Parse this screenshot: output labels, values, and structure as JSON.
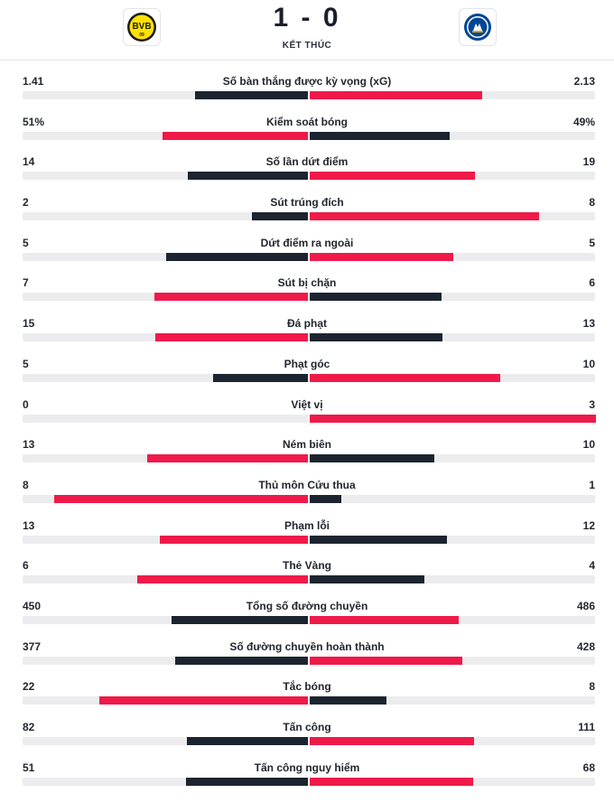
{
  "match": {
    "home_score": "1",
    "separator": "-",
    "away_score": "0",
    "status": "KẾT THÚC",
    "home_logo_text": "BVB",
    "home_logo_sub": "09",
    "colors": {
      "highlight": "#ef1a4a",
      "neutral": "#1c2430",
      "track": "#ececee"
    }
  },
  "stats": [
    {
      "label": "Số bàn thắng được kỳ vọng (xG)",
      "home": "1.41",
      "away": "2.13",
      "home_value": 1.41,
      "away_value": 2.13
    },
    {
      "label": "Kiểm soát bóng",
      "home": "51%",
      "away": "49%",
      "home_value": 51,
      "away_value": 49
    },
    {
      "label": "Số lần dứt điểm",
      "home": "14",
      "away": "19",
      "home_value": 14,
      "away_value": 19
    },
    {
      "label": "Sút trúng đích",
      "home": "2",
      "away": "8",
      "home_value": 2,
      "away_value": 8
    },
    {
      "label": "Dứt điểm ra ngoài",
      "home": "5",
      "away": "5",
      "home_value": 5,
      "away_value": 5
    },
    {
      "label": "Sút bị chặn",
      "home": "7",
      "away": "6",
      "home_value": 7,
      "away_value": 6
    },
    {
      "label": "Đá phạt",
      "home": "15",
      "away": "13",
      "home_value": 15,
      "away_value": 13
    },
    {
      "label": "Phạt góc",
      "home": "5",
      "away": "10",
      "home_value": 5,
      "away_value": 10
    },
    {
      "label": "Việt vị",
      "home": "0",
      "away": "3",
      "home_value": 0,
      "away_value": 3
    },
    {
      "label": "Ném biên",
      "home": "13",
      "away": "10",
      "home_value": 13,
      "away_value": 10
    },
    {
      "label": "Thủ môn Cứu thua",
      "home": "8",
      "away": "1",
      "home_value": 8,
      "away_value": 1
    },
    {
      "label": "Phạm lỗi",
      "home": "13",
      "away": "12",
      "home_value": 13,
      "away_value": 12
    },
    {
      "label": "Thẻ Vàng",
      "home": "6",
      "away": "4",
      "home_value": 6,
      "away_value": 4
    },
    {
      "label": "Tổng số đường chuyền",
      "home": "450",
      "away": "486",
      "home_value": 450,
      "away_value": 486
    },
    {
      "label": "Số đường chuyền hoàn thành",
      "home": "377",
      "away": "428",
      "home_value": 377,
      "away_value": 428
    },
    {
      "label": "Tắc bóng",
      "home": "22",
      "away": "8",
      "home_value": 22,
      "away_value": 8
    },
    {
      "label": "Tấn công",
      "home": "82",
      "away": "111",
      "home_value": 82,
      "away_value": 111
    },
    {
      "label": "Tấn công nguy hiểm",
      "home": "51",
      "away": "68",
      "home_value": 51,
      "away_value": 68
    }
  ]
}
